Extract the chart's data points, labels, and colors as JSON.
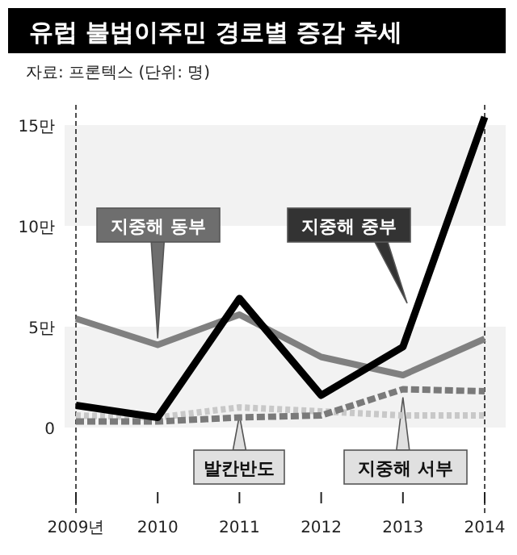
{
  "chart_data": {
    "type": "line",
    "title": "유럽 불법이주민 경로별 증감 추세",
    "subtitle": "자료: 프론텍스 (단위: 명)",
    "categories": [
      "2009년",
      "2010",
      "2011",
      "2012",
      "2013",
      "2014"
    ],
    "series": [
      {
        "name": "지중해 동부",
        "color": "#808080",
        "line_style": "solid",
        "values": [
          5.4,
          4.1,
          5.6,
          3.5,
          2.6,
          4.4
        ]
      },
      {
        "name": "지중해 중부",
        "color": "#000000",
        "line_style": "solid",
        "values": [
          1.1,
          0.5,
          6.4,
          1.6,
          4.0,
          15.4
        ]
      },
      {
        "name": "발칸반도",
        "color": "#c8c8c8",
        "line_style": "dotted",
        "values": [
          0.6,
          0.5,
          1.0,
          0.8,
          0.6,
          0.6
        ]
      },
      {
        "name": "지중해 서부",
        "color": "#7a7a7a",
        "line_style": "dashed",
        "values": [
          0.3,
          0.3,
          0.5,
          0.6,
          1.9,
          1.8
        ]
      }
    ],
    "ylim": [
      0,
      16
    ],
    "yticks": [
      0,
      {
        "value": 5,
        "label": "5만"
      },
      {
        "value": 10,
        "label": "10만"
      },
      {
        "value": 15,
        "label": "15만"
      }
    ],
    "bands": [
      {
        "axis": "y",
        "from": 0,
        "to": 5,
        "color": "#f2f2f2"
      },
      {
        "axis": "y",
        "from": 10,
        "to": 15,
        "color": "#f2f2f2"
      }
    ],
    "legend": false
  }
}
